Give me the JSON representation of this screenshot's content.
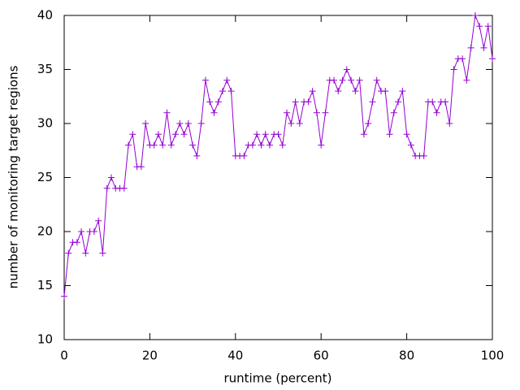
{
  "chart_data": {
    "type": "line",
    "xlabel": "runtime (percent)",
    "ylabel": "number of monitoring target regions",
    "x": [
      0,
      1,
      2,
      3,
      4,
      5,
      6,
      7,
      8,
      9,
      10,
      11,
      12,
      13,
      14,
      15,
      16,
      17,
      18,
      19,
      20,
      21,
      22,
      23,
      24,
      25,
      26,
      27,
      28,
      29,
      30,
      31,
      32,
      33,
      34,
      35,
      36,
      37,
      38,
      39,
      40,
      41,
      42,
      43,
      44,
      45,
      46,
      47,
      48,
      49,
      50,
      51,
      52,
      53,
      54,
      55,
      56,
      57,
      58,
      59,
      60,
      61,
      62,
      63,
      64,
      65,
      66,
      67,
      68,
      69,
      70,
      71,
      72,
      73,
      74,
      75,
      76,
      77,
      78,
      79,
      80,
      81,
      82,
      83,
      84,
      85,
      86,
      87,
      88,
      89,
      90,
      91,
      92,
      93,
      94,
      95,
      96,
      97,
      98,
      99,
      100
    ],
    "series": [
      {
        "color": "#9400d3",
        "values": [
          14,
          18,
          19,
          19,
          20,
          18,
          20,
          20,
          21,
          18,
          24,
          25,
          24,
          24,
          24,
          28,
          29,
          26,
          26,
          30,
          28,
          28,
          29,
          28,
          31,
          28,
          29,
          30,
          29,
          30,
          28,
          27,
          30,
          34,
          32,
          31,
          32,
          33,
          34,
          33,
          27,
          27,
          27,
          28,
          28,
          29,
          28,
          29,
          28,
          29,
          29,
          28,
          31,
          30,
          32,
          30,
          32,
          32,
          33,
          31,
          28,
          31,
          34,
          34,
          33,
          34,
          35,
          34,
          33,
          34,
          29,
          30,
          32,
          34,
          33,
          33,
          29,
          31,
          32,
          33,
          29,
          28,
          27,
          27,
          27,
          32,
          32,
          31,
          32,
          32,
          30,
          35,
          36,
          36,
          34,
          37,
          40,
          39,
          37,
          39,
          36
        ]
      }
    ],
    "xlim": [
      0,
      100
    ],
    "xticks": [
      0,
      20,
      40,
      60,
      80,
      100
    ],
    "ylim": [
      10,
      40
    ],
    "yticks": [
      10,
      15,
      20,
      25,
      30,
      35,
      40
    ],
    "grid": false,
    "marker": "+"
  }
}
